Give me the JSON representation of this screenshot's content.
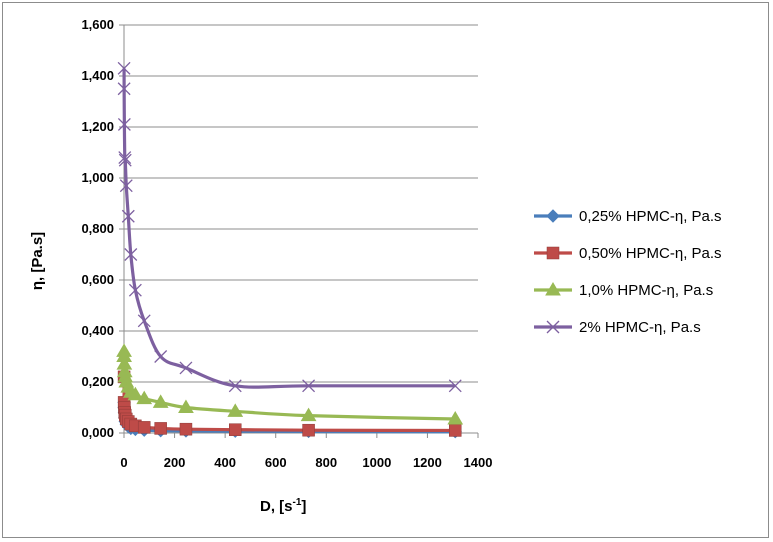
{
  "chart_data": {
    "type": "line",
    "title": "",
    "xlabel": "D, [s",
    "xlabel_sup": "-1",
    "xlabel_suffix": "]",
    "ylabel": "η, [Pa.s]",
    "xlim": [
      0,
      1400
    ],
    "ylim": [
      0,
      1.6
    ],
    "xticks": [
      "0",
      "200",
      "400",
      "600",
      "800",
      "1000",
      "1200",
      "1400"
    ],
    "yticks": [
      "0,000",
      "0,200",
      "0,400",
      "0,600",
      "0,800",
      "1,000",
      "1,200",
      "1,400",
      "1,600"
    ],
    "grid": "horizontal",
    "legend_position": "right",
    "x": [
      0.3,
      0.5,
      1.5,
      3,
      5,
      9,
      17,
      27,
      45,
      80,
      145,
      245,
      440,
      730,
      1310
    ],
    "series": [
      {
        "name": "0,25% HPMC-η, Pa.s",
        "color": "#4a7ebb",
        "marker": "diamond",
        "values": [
          0.12,
          0.1,
          0.08,
          0.06,
          0.045,
          0.035,
          0.025,
          0.018,
          0.014,
          0.011,
          0.009,
          0.008,
          0.007,
          0.006,
          0.005
        ]
      },
      {
        "name": "0,50% HPMC-η, Pa.s",
        "color": "#be4b48",
        "marker": "square",
        "values": [
          0.22,
          0.12,
          0.1,
          0.08,
          0.07,
          0.055,
          0.045,
          0.035,
          0.028,
          0.022,
          0.018,
          0.015,
          0.013,
          0.011,
          0.01
        ]
      },
      {
        "name": "1,0% HPMC-η, Pa.s",
        "color": "#98b954",
        "marker": "triangle",
        "values": [
          0.32,
          0.3,
          0.27,
          0.24,
          0.22,
          0.2,
          0.18,
          0.16,
          0.15,
          0.135,
          0.12,
          0.1,
          0.085,
          0.068,
          0.055
        ]
      },
      {
        "name": "2% HPMC-η, Pa.s",
        "color": "#7d60a0",
        "marker": "x",
        "values": [
          1.43,
          1.35,
          1.21,
          1.08,
          1.07,
          0.97,
          0.85,
          0.7,
          0.56,
          0.44,
          0.3,
          0.255,
          0.185,
          0.185,
          0.185
        ]
      }
    ]
  }
}
